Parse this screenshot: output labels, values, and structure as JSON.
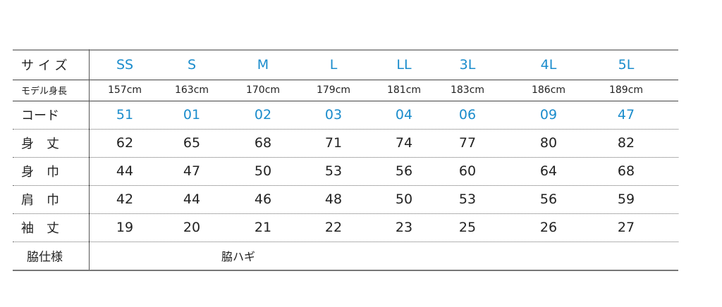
{
  "table": {
    "header": {
      "label": "サイズ",
      "cells": [
        "SS",
        "S",
        "M",
        "L",
        "LL",
        "3L",
        "4L",
        "5L"
      ],
      "color": "#1a8ccc"
    },
    "rows": [
      {
        "label": "モデル身長",
        "cells": [
          "157cm",
          "163cm",
          "170cm",
          "179cm",
          "181cm",
          "183cm",
          "186cm",
          "189cm"
        ]
      },
      {
        "label": "コード",
        "cells": [
          "51",
          "01",
          "02",
          "03",
          "04",
          "06",
          "09",
          "47"
        ],
        "color": "#1a8ccc"
      },
      {
        "label": "身　丈",
        "cells": [
          62,
          65,
          68,
          71,
          74,
          77,
          80,
          82
        ]
      },
      {
        "label": "身　巾",
        "cells": [
          44,
          47,
          50,
          53,
          56,
          60,
          64,
          68
        ]
      },
      {
        "label": "肩　巾",
        "cells": [
          42,
          44,
          46,
          48,
          50,
          53,
          56,
          59
        ]
      },
      {
        "label": "袖　丈",
        "cells": [
          19,
          20,
          21,
          22,
          23,
          25,
          26,
          27
        ]
      }
    ],
    "footer": {
      "label": "脇仕様",
      "value": "脇ハギ"
    }
  }
}
